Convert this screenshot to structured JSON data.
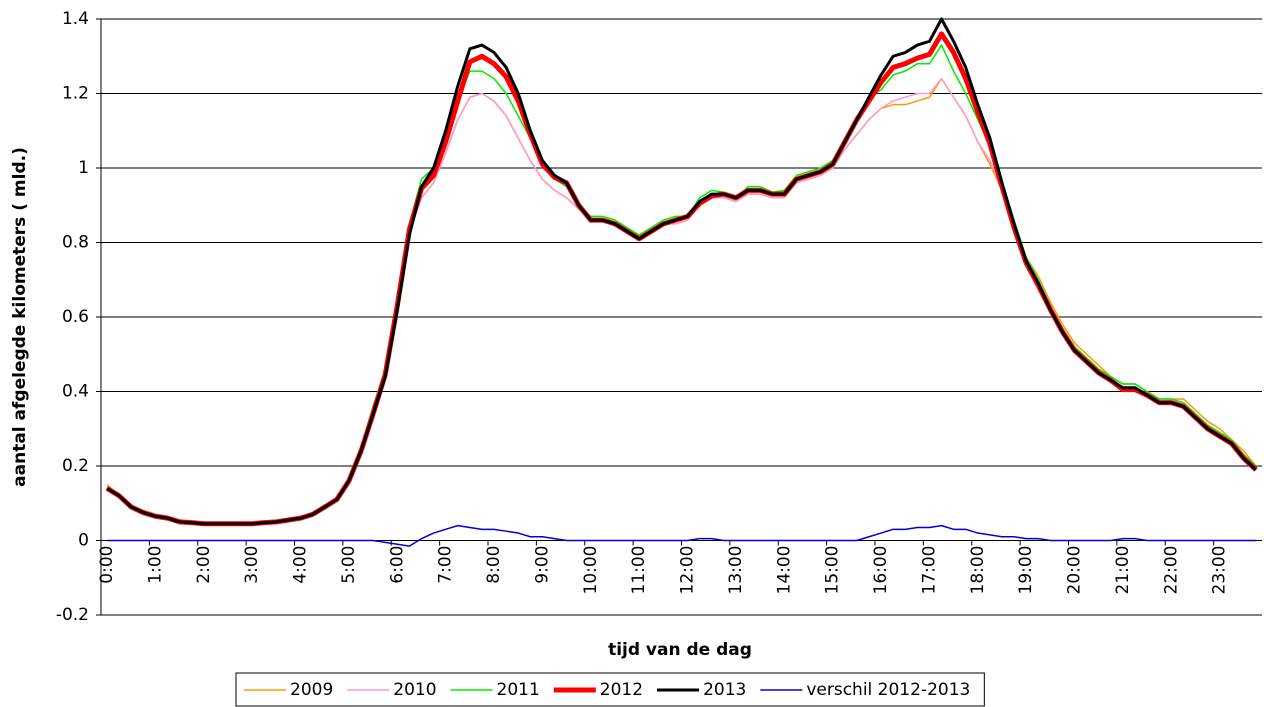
{
  "chart_data": {
    "type": "line",
    "y_label": "aantal afgelegde kilometers ( mld.)",
    "x_label": "tijd van de dag",
    "categories": [
      "0:00",
      null,
      null,
      null,
      "1:00",
      null,
      null,
      null,
      "2:00",
      null,
      null,
      null,
      "3:00",
      null,
      null,
      null,
      "4:00",
      null,
      null,
      null,
      "5:00",
      null,
      null,
      null,
      "6:00",
      null,
      null,
      null,
      "7:00",
      null,
      null,
      null,
      "8:00",
      null,
      null,
      null,
      "9:00",
      null,
      null,
      null,
      "10:00",
      null,
      null,
      null,
      "11:00",
      null,
      null,
      null,
      "12:00",
      null,
      null,
      null,
      "13:00",
      null,
      null,
      null,
      "14:00",
      null,
      null,
      null,
      "15:00",
      null,
      null,
      null,
      "16:00",
      null,
      null,
      null,
      "17:00",
      null,
      null,
      null,
      "18:00",
      null,
      null,
      null,
      "19:00",
      null,
      null,
      null,
      "20:00",
      null,
      null,
      null,
      "21:00",
      null,
      null,
      null,
      "22:00",
      null,
      null,
      null,
      "23:00",
      null,
      null,
      null
    ],
    "ylim": [
      -0.2,
      1.4
    ],
    "yticks": [
      -0.2,
      0,
      0.2,
      0.4,
      0.6,
      0.8,
      1,
      1.2,
      1.4
    ],
    "grid": true,
    "legend": "bottom",
    "series": [
      {
        "name": "2009",
        "color": "#ff9900",
        "line_width": 1.5,
        "values": [
          0.15,
          0.12,
          0.095,
          0.08,
          0.07,
          0.065,
          0.055,
          0.05,
          0.047,
          0.047,
          0.047,
          0.046,
          0.045,
          0.047,
          0.05,
          0.055,
          0.06,
          0.07,
          0.09,
          0.11,
          0.16,
          0.25,
          0.36,
          0.45,
          0.64,
          0.83,
          0.92,
          0.96,
          1.04,
          1.13,
          1.19,
          1.2,
          1.18,
          1.14,
          1.08,
          1.02,
          0.97,
          0.94,
          0.92,
          0.89,
          0.86,
          0.86,
          0.85,
          0.83,
          0.81,
          0.83,
          0.85,
          0.85,
          0.86,
          0.9,
          0.92,
          0.92,
          0.91,
          0.93,
          0.93,
          0.92,
          0.92,
          0.96,
          0.97,
          0.98,
          1.0,
          1.05,
          1.09,
          1.13,
          1.16,
          1.17,
          1.17,
          1.18,
          1.19,
          1.24,
          1.19,
          1.14,
          1.07,
          1.01,
          0.94,
          0.85,
          0.76,
          0.71,
          0.64,
          0.58,
          0.53,
          0.5,
          0.47,
          0.44,
          0.42,
          0.42,
          0.4,
          0.38,
          0.38,
          0.38,
          0.35,
          0.32,
          0.3,
          0.27,
          0.24,
          0.2
        ]
      },
      {
        "name": "2010",
        "color": "#ff99cc",
        "line_width": 1.5,
        "values": [
          0.145,
          0.12,
          0.095,
          0.08,
          0.07,
          0.065,
          0.055,
          0.05,
          0.047,
          0.047,
          0.047,
          0.046,
          0.045,
          0.047,
          0.05,
          0.055,
          0.06,
          0.07,
          0.09,
          0.11,
          0.16,
          0.25,
          0.36,
          0.45,
          0.64,
          0.83,
          0.92,
          0.96,
          1.04,
          1.13,
          1.19,
          1.2,
          1.18,
          1.14,
          1.08,
          1.02,
          0.97,
          0.94,
          0.92,
          0.89,
          0.86,
          0.86,
          0.85,
          0.83,
          0.81,
          0.83,
          0.85,
          0.85,
          0.86,
          0.9,
          0.92,
          0.92,
          0.91,
          0.93,
          0.93,
          0.92,
          0.92,
          0.96,
          0.97,
          0.98,
          1.0,
          1.05,
          1.09,
          1.13,
          1.16,
          1.18,
          1.19,
          1.2,
          1.2,
          1.24,
          1.19,
          1.14,
          1.07,
          1.02,
          0.94,
          0.85,
          0.76,
          0.7,
          0.63,
          0.57,
          0.52,
          0.49,
          0.46,
          0.44,
          0.42,
          0.42,
          0.4,
          0.38,
          0.38,
          0.37,
          0.34,
          0.31,
          0.29,
          0.27,
          0.23,
          0.2
        ]
      },
      {
        "name": "2011",
        "color": "#00ee00",
        "line_width": 1.5,
        "values": [
          0.14,
          0.12,
          0.09,
          0.075,
          0.065,
          0.06,
          0.052,
          0.048,
          0.046,
          0.046,
          0.046,
          0.046,
          0.046,
          0.048,
          0.05,
          0.055,
          0.06,
          0.07,
          0.09,
          0.11,
          0.16,
          0.25,
          0.36,
          0.46,
          0.66,
          0.85,
          0.97,
          1.0,
          1.08,
          1.18,
          1.26,
          1.26,
          1.24,
          1.2,
          1.14,
          1.08,
          1.01,
          0.97,
          0.95,
          0.9,
          0.87,
          0.87,
          0.86,
          0.84,
          0.82,
          0.84,
          0.86,
          0.87,
          0.87,
          0.92,
          0.94,
          0.935,
          0.92,
          0.95,
          0.95,
          0.935,
          0.94,
          0.98,
          0.99,
          1.0,
          1.02,
          1.08,
          1.13,
          1.19,
          1.21,
          1.25,
          1.26,
          1.28,
          1.28,
          1.33,
          1.26,
          1.2,
          1.13,
          1.06,
          0.96,
          0.86,
          0.76,
          0.7,
          0.63,
          0.57,
          0.52,
          0.49,
          0.46,
          0.44,
          0.42,
          0.42,
          0.4,
          0.38,
          0.38,
          0.37,
          0.34,
          0.31,
          0.29,
          0.27,
          0.23,
          0.2
        ]
      },
      {
        "name": "2012",
        "color": "#ff0000",
        "line_width": 5,
        "values": [
          0.14,
          0.12,
          0.09,
          0.075,
          0.065,
          0.06,
          0.05,
          0.048,
          0.045,
          0.045,
          0.045,
          0.045,
          0.045,
          0.048,
          0.05,
          0.055,
          0.06,
          0.07,
          0.09,
          0.11,
          0.16,
          0.24,
          0.34,
          0.445,
          0.63,
          0.835,
          0.945,
          0.98,
          1.07,
          1.18,
          1.285,
          1.3,
          1.28,
          1.245,
          1.18,
          1.09,
          1.01,
          0.975,
          0.96,
          0.9,
          0.86,
          0.86,
          0.85,
          0.83,
          0.81,
          0.83,
          0.85,
          0.86,
          0.87,
          0.905,
          0.925,
          0.93,
          0.92,
          0.94,
          0.94,
          0.93,
          0.93,
          0.97,
          0.98,
          0.99,
          1.01,
          1.07,
          1.13,
          1.18,
          1.23,
          1.27,
          1.28,
          1.295,
          1.305,
          1.36,
          1.31,
          1.24,
          1.15,
          1.065,
          0.95,
          0.84,
          0.745,
          0.685,
          0.62,
          0.56,
          0.51,
          0.48,
          0.45,
          0.43,
          0.405,
          0.405,
          0.39,
          0.37,
          0.37,
          0.36,
          0.33,
          0.3,
          0.28,
          0.26,
          0.22,
          0.19
        ]
      },
      {
        "name": "2013",
        "color": "#000000",
        "line_width": 3,
        "values": [
          0.14,
          0.12,
          0.09,
          0.075,
          0.065,
          0.06,
          0.05,
          0.048,
          0.045,
          0.045,
          0.045,
          0.045,
          0.045,
          0.048,
          0.05,
          0.055,
          0.06,
          0.07,
          0.09,
          0.11,
          0.16,
          0.24,
          0.34,
          0.44,
          0.62,
          0.82,
          0.95,
          1.0,
          1.1,
          1.22,
          1.32,
          1.33,
          1.31,
          1.27,
          1.2,
          1.1,
          1.02,
          0.98,
          0.96,
          0.9,
          0.86,
          0.86,
          0.85,
          0.83,
          0.81,
          0.83,
          0.85,
          0.86,
          0.87,
          0.91,
          0.93,
          0.93,
          0.92,
          0.94,
          0.94,
          0.93,
          0.93,
          0.97,
          0.98,
          0.99,
          1.01,
          1.07,
          1.13,
          1.19,
          1.25,
          1.3,
          1.31,
          1.33,
          1.34,
          1.4,
          1.34,
          1.27,
          1.17,
          1.08,
          0.96,
          0.85,
          0.75,
          0.69,
          0.62,
          0.56,
          0.51,
          0.48,
          0.45,
          0.43,
          0.41,
          0.41,
          0.39,
          0.37,
          0.37,
          0.36,
          0.33,
          0.3,
          0.28,
          0.26,
          0.22,
          0.19
        ]
      },
      {
        "name": "verschil 2012-2013",
        "color": "#0000dd",
        "line_width": 1.5,
        "values": [
          0,
          0,
          0,
          0,
          0,
          0,
          0,
          0,
          0,
          0,
          0,
          0,
          0,
          0,
          0,
          0,
          0,
          0,
          0,
          0,
          0,
          0,
          0,
          -0.005,
          -0.01,
          -0.015,
          0.005,
          0.02,
          0.03,
          0.04,
          0.035,
          0.03,
          0.03,
          0.025,
          0.02,
          0.01,
          0.01,
          0.005,
          0,
          0,
          0,
          0,
          0,
          0,
          0,
          0,
          0,
          0,
          0,
          0.005,
          0.005,
          0,
          0,
          0,
          0,
          0,
          0,
          0,
          0,
          0,
          0,
          0,
          0,
          0.01,
          0.02,
          0.03,
          0.03,
          0.035,
          0.035,
          0.04,
          0.03,
          0.03,
          0.02,
          0.015,
          0.01,
          0.01,
          0.005,
          0.005,
          0,
          0,
          0,
          0,
          0,
          0,
          0.005,
          0.005,
          0,
          0,
          0,
          0,
          0,
          0,
          0,
          0,
          0,
          0
        ]
      }
    ]
  }
}
